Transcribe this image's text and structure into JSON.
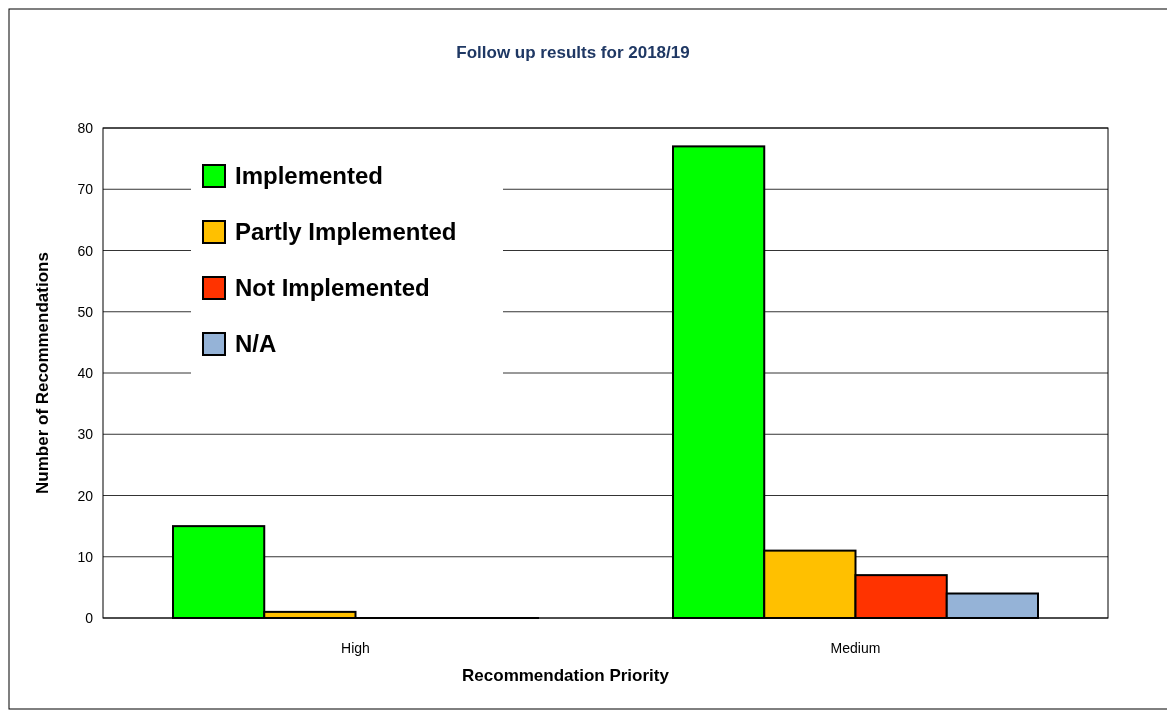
{
  "chart_data": {
    "type": "bar",
    "title": "Follow up results for 2018/19",
    "xlabel": "Recommendation Priority",
    "ylabel": "Number of Recommendations",
    "categories": [
      "High",
      "Medium"
    ],
    "series": [
      {
        "name": "Implemented",
        "color": "#00ff00",
        "values": [
          15,
          77
        ]
      },
      {
        "name": "Partly Implemented",
        "color": "#ffc000",
        "values": [
          1,
          11
        ]
      },
      {
        "name": "Not Implemented",
        "color": "#ff3300",
        "values": [
          0,
          7
        ]
      },
      {
        "name": "N/A",
        "color": "#95b3d7",
        "values": [
          0,
          4
        ]
      }
    ],
    "ylim": [
      0,
      80
    ],
    "yticks": [
      0,
      10,
      20,
      30,
      40,
      50,
      60,
      70,
      80
    ],
    "grid": "y",
    "legend": "top left"
  }
}
